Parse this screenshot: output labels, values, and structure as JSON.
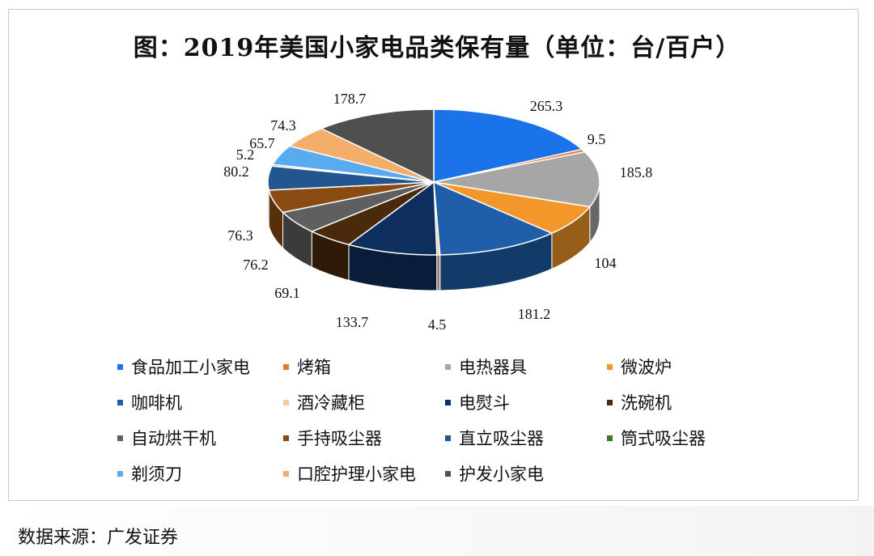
{
  "chart_data": {
    "type": "pie",
    "title": "图：2019年美国小家电品类保有量（单位：台/百户）",
    "categories": [
      "食品加工小家电",
      "烤箱",
      "电热器具",
      "微波炉",
      "咖啡机",
      "酒冷藏柜",
      "电熨斗",
      "洗碗机",
      "自动烘干机",
      "手持吸尘器",
      "直立吸尘器",
      "筒式吸尘器",
      "剃须刀",
      "口腔护理小家电",
      "护发小家电"
    ],
    "values": [
      265.3,
      9.5,
      185.8,
      104,
      181.2,
      4.5,
      133.7,
      69.1,
      76.2,
      76.3,
      80.2,
      5.2,
      65.7,
      74.3,
      178.7
    ],
    "value_labels": [
      "265.3",
      "9.5",
      "185.8",
      "104",
      "181.2",
      "4.5",
      "133.7",
      "69.1",
      "76.2",
      "76.3",
      "80.2",
      "5.2",
      "65.7",
      "74.3",
      "178.7"
    ],
    "colors": [
      "#1a73e8",
      "#e8762b",
      "#a6a6a6",
      "#f4972a",
      "#1f5faa",
      "#f6c89a",
      "#0e2e5e",
      "#4a2a0c",
      "#5f5f5f",
      "#8a4b12",
      "#23568f",
      "#3d7a2a",
      "#5aaaf0",
      "#f4ad6b",
      "#4f4f4f"
    ],
    "legend_position": "bottom",
    "style": "3d-exploded"
  },
  "source_text": "数据来源：广发证券"
}
